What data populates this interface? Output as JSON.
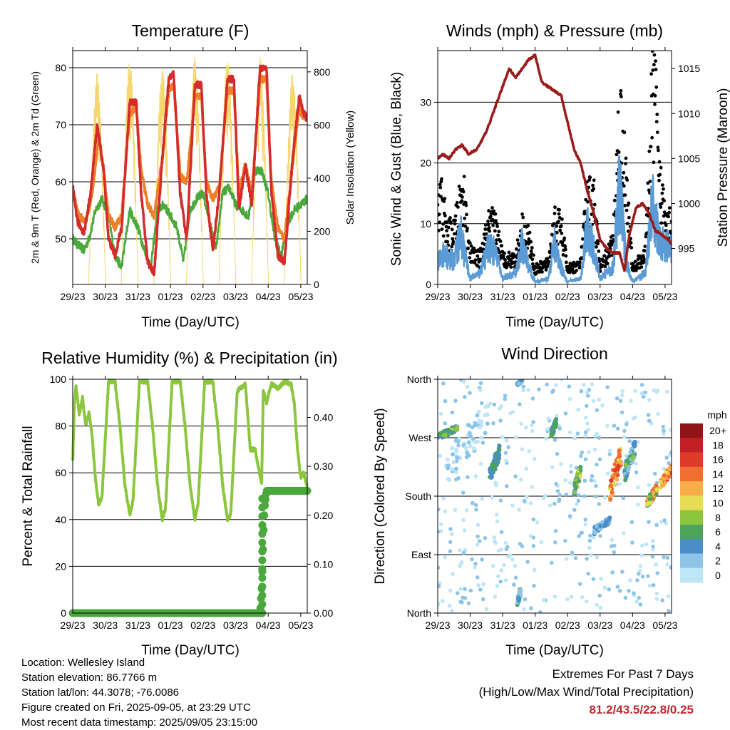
{
  "panels": {
    "temperature": {
      "title": "Temperature (F)",
      "ylabel_left": "2m & 9m T (Red, Orange) & 2m Td (Green)",
      "ylabel_right": "Solar Insolation (Yellow)",
      "xlabel": "Time (Day/UTC)"
    },
    "winds": {
      "title": "Winds (mph) & Pressure (mb)",
      "ylabel_left": "Sonic Wind & Gust (Blue, Black)",
      "ylabel_right": "Station Pressure (Maroon)",
      "xlabel": "Time (Day/UTC)"
    },
    "humidity": {
      "title": "Relative Humidity (%) & Precipitation (in)",
      "ylabel_left": "Percent & Total Rainfall",
      "xlabel": "Time (Day/UTC)"
    },
    "direction": {
      "title": "Wind Direction",
      "ylabel_left": "Direction (Colored By Speed)",
      "xlabel": "Time (Day/UTC)",
      "colorbar_title": "mph"
    }
  },
  "info": {
    "location": "Location: Wellesley Island",
    "elevation": "Station elevation: 86.7766 m",
    "latlon": "Station lat/lon: 44.3078; -76.0086",
    "created": "Figure created on Fri, 2025-09-05, at 23:29 UTC",
    "recent": "Most recent data timestamp: 2025/09/05 23:15:00"
  },
  "extremes": {
    "line1": "Extremes For Past 7 Days",
    "line2": "(High/Low/Max Wind/Total Precipitation)",
    "values": "81.2/43.5/22.8/0.25"
  },
  "colors": {
    "temp_2m": "#d42b2b",
    "temp_9m": "#f07f2a",
    "dewpoint": "#4aa83c",
    "solar": "#f5d76e",
    "wind": "#5b9bd5",
    "gust": "#000000",
    "pressure": "#9b1b1b",
    "rh": "#8cc63f",
    "precip": "#4aa83c",
    "speed_scale": [
      "#bfe6f7",
      "#8ec4e8",
      "#4a8ec9",
      "#4da35a",
      "#8cc63f",
      "#e6dd55",
      "#f9ad4a",
      "#f06f30",
      "#e03a2a",
      "#c21f26",
      "#8e1418"
    ]
  },
  "chart_data": [
    {
      "type": "line",
      "title": "Temperature (F)",
      "xlabel": "Time (Day/UTC)",
      "ylabel": "2m & 9m T (Red, Orange) & 2m Td (Green)",
      "y2label": "Solar Insolation (Yellow)",
      "x_ticks": [
        "29/23",
        "30/23",
        "31/23",
        "01/23",
        "02/23",
        "03/23",
        "04/23",
        "05/23"
      ],
      "xlim": [
        0,
        7.2
      ],
      "ylim": [
        42,
        83
      ],
      "y_ticks": [
        50,
        60,
        70,
        80
      ],
      "y2lim": [
        0,
        880
      ],
      "y2_ticks": [
        0,
        200,
        400,
        600,
        800
      ],
      "grid": "horizontal",
      "series": [
        {
          "name": "2m T",
          "x": [
            0,
            0.15,
            0.35,
            0.55,
            0.75,
            0.95,
            1.1,
            1.3,
            1.5,
            1.75,
            1.95,
            2.1,
            2.3,
            2.5,
            2.75,
            2.95,
            3.1,
            3.3,
            3.5,
            3.75,
            3.95,
            4.1,
            4.3,
            4.5,
            4.75,
            4.95,
            5.1,
            5.3,
            5.5,
            5.75,
            5.95,
            6.1,
            6.3,
            6.5,
            6.75,
            6.95,
            7.1,
            7.2
          ],
          "y": [
            59,
            53,
            51,
            58,
            70,
            62,
            50,
            47,
            52,
            74,
            74,
            58,
            46,
            44,
            64,
            78,
            79,
            58,
            50,
            77,
            77,
            58,
            48,
            58,
            78,
            78,
            55,
            63,
            56,
            80,
            80,
            58,
            47,
            46,
            64,
            75,
            72,
            71
          ]
        },
        {
          "name": "9m T",
          "x": [
            0,
            0.2,
            0.4,
            0.6,
            0.8,
            0.95,
            1.1,
            1.3,
            1.5,
            1.75,
            1.95,
            2.1,
            2.3,
            2.5,
            2.75,
            2.95,
            3.1,
            3.3,
            3.5,
            3.75,
            3.95,
            4.1,
            4.3,
            4.5,
            4.75,
            4.95,
            5.1,
            5.3,
            5.5,
            5.75,
            5.95,
            6.1,
            6.3,
            6.5,
            6.75,
            6.95,
            7.1,
            7.2
          ],
          "y": [
            58,
            54,
            53,
            58,
            68,
            62,
            54,
            52,
            54,
            72,
            73,
            62,
            56,
            54,
            64,
            76,
            77,
            61,
            60,
            75,
            75,
            60,
            57,
            59,
            76,
            76,
            58,
            63,
            58,
            78,
            78,
            60,
            52,
            50,
            63,
            73,
            71,
            71
          ]
        },
        {
          "name": "2m Td",
          "x": [
            0,
            0.15,
            0.35,
            0.5,
            0.7,
            0.9,
            1.1,
            1.3,
            1.5,
            1.75,
            2.0,
            2.2,
            2.4,
            2.6,
            2.8,
            3.0,
            3.2,
            3.4,
            3.6,
            3.8,
            4.0,
            4.2,
            4.4,
            4.6,
            4.8,
            5.0,
            5.2,
            5.4,
            5.6,
            5.8,
            6.0,
            6.2,
            6.4,
            6.6,
            6.8,
            7.0,
            7.2
          ],
          "y": [
            50,
            49,
            48,
            50,
            55,
            57,
            54,
            47,
            45,
            55,
            52,
            48,
            45,
            55,
            56,
            54,
            52,
            46,
            55,
            57,
            58,
            53,
            48,
            58,
            59,
            56,
            55,
            54,
            62,
            62,
            58,
            50,
            47,
            53,
            55,
            56,
            57
          ]
        },
        {
          "name": "Solar Insolation",
          "axis": "y2",
          "peak_days": [
            0.75,
            1.75,
            2.75,
            3.75,
            4.75,
            5.75,
            6.75
          ],
          "peak_values": [
            800,
            850,
            820,
            860,
            860,
            860,
            800
          ]
        }
      ]
    },
    {
      "type": "line",
      "title": "Winds (mph) & Pressure (mb)",
      "xlabel": "Time (Day/UTC)",
      "ylabel": "Sonic Wind & Gust (Blue, Black)",
      "y2label": "Station Pressure (Maroon)",
      "x_ticks": [
        "29/23",
        "30/23",
        "31/23",
        "01/23",
        "02/23",
        "03/23",
        "04/23",
        "05/23"
      ],
      "xlim": [
        0,
        7.2
      ],
      "ylim": [
        0,
        38.5
      ],
      "y_ticks": [
        0,
        10,
        20,
        30
      ],
      "y2lim": [
        991,
        1017
      ],
      "y2_ticks": [
        995,
        1000,
        1005,
        1010,
        1015
      ],
      "grid": "horizontal",
      "series": [
        {
          "name": "Wind",
          "x": [
            0,
            0.2,
            0.5,
            0.7,
            0.8,
            1.0,
            1.3,
            1.6,
            1.8,
            2.0,
            2.4,
            2.6,
            2.8,
            3.0,
            3.4,
            3.6,
            3.8,
            4.0,
            4.4,
            4.6,
            4.8,
            5.0,
            5.4,
            5.6,
            5.8,
            6.0,
            6.4,
            6.6,
            6.8,
            7.0,
            7.2
          ],
          "y": [
            4,
            5,
            4,
            9,
            6,
            1,
            2,
            7,
            5,
            1,
            2,
            7,
            3,
            0.5,
            1,
            7,
            3,
            0.5,
            1,
            10,
            6,
            1,
            3,
            17,
            4,
            0.5,
            2,
            14,
            8,
            7,
            6
          ]
        },
        {
          "name": "Gust",
          "x": [
            0,
            0.1,
            0.3,
            0.5,
            0.7,
            0.8,
            1.0,
            1.3,
            1.6,
            1.8,
            2.0,
            2.4,
            2.6,
            2.8,
            3.0,
            3.4,
            3.6,
            3.8,
            4.0,
            4.4,
            4.6,
            4.8,
            5.0,
            5.4,
            5.6,
            5.8,
            6.0,
            6.4,
            6.6,
            6.7,
            6.8,
            7.0,
            7.2
          ],
          "y": [
            13,
            17,
            10,
            10,
            16,
            18,
            6,
            5,
            12,
            11,
            5,
            5,
            11,
            9,
            3,
            4,
            12,
            11,
            3,
            4,
            16,
            17,
            3,
            8,
            33,
            20,
            3,
            6,
            35,
            38,
            20,
            15,
            12
          ]
        },
        {
          "name": "Station Pressure",
          "axis": "y2",
          "x": [
            0,
            0.15,
            0.35,
            0.55,
            0.75,
            0.95,
            1.2,
            1.5,
            1.8,
            2.0,
            2.2,
            2.4,
            2.6,
            2.8,
            3.0,
            3.2,
            3.4,
            3.6,
            3.8,
            4.0,
            4.2,
            4.4,
            4.6,
            4.8,
            5.0,
            5.2,
            5.4,
            5.6,
            5.75,
            5.9,
            6.1,
            6.3,
            6.5,
            6.7,
            6.9,
            7.1,
            7.2
          ],
          "y": [
            1005,
            1005.5,
            1005,
            1006,
            1006.5,
            1005.5,
            1006,
            1008,
            1011,
            1013,
            1015,
            1014,
            1015,
            1016,
            1016.5,
            1013.5,
            1013,
            1012.5,
            1012,
            1009,
            1006,
            1004.5,
            1001.5,
            999,
            996,
            995,
            994.5,
            994.5,
            992.5,
            996.5,
            999.5,
            1000,
            999,
            997,
            996.5,
            996,
            995.5
          ]
        }
      ]
    },
    {
      "type": "line",
      "title": "Relative Humidity (%) & Precipitation (in)",
      "xlabel": "Time (Day/UTC)",
      "ylabel": "Percent & Total Rainfall",
      "x_ticks": [
        "29/23",
        "30/23",
        "31/23",
        "01/23",
        "02/23",
        "03/23",
        "04/23",
        "05/23"
      ],
      "xlim": [
        0,
        7.2
      ],
      "ylim": [
        0,
        100
      ],
      "y_ticks": [
        0,
        20,
        40,
        60,
        80,
        100
      ],
      "y2lim": [
        0,
        0.478
      ],
      "y2_ticks": [
        0.0,
        0.1,
        0.2,
        0.3,
        0.4
      ],
      "y2_tick_labels": [
        "0.00",
        "0.10",
        "0.20",
        "0.30",
        "0.40"
      ],
      "grid": "horizontal",
      "series": [
        {
          "name": "RH",
          "x": [
            0,
            0.05,
            0.1,
            0.2,
            0.3,
            0.4,
            0.5,
            0.6,
            0.7,
            0.8,
            0.9,
            1.1,
            1.3,
            1.45,
            1.6,
            1.75,
            1.85,
            2.05,
            2.3,
            2.45,
            2.6,
            2.75,
            2.85,
            3.05,
            3.3,
            3.45,
            3.6,
            3.75,
            3.85,
            4.05,
            4.3,
            4.45,
            4.6,
            4.75,
            4.85,
            5.05,
            5.3,
            5.45,
            5.6,
            5.8,
            5.85,
            5.95,
            6.1,
            6.3,
            6.5,
            6.7,
            6.8,
            6.9,
            7.0,
            7.1,
            7.2
          ],
          "y": [
            65,
            90,
            97,
            85,
            92,
            80,
            86,
            75,
            57,
            46,
            50,
            99,
            99,
            80,
            55,
            42,
            48,
            99,
            99,
            80,
            55,
            40,
            45,
            99,
            99,
            80,
            55,
            40,
            47,
            99,
            99,
            80,
            55,
            40,
            42,
            95,
            98,
            70,
            70,
            55,
            95,
            90,
            98,
            96,
            99,
            98,
            90,
            70,
            58,
            60,
            54
          ]
        },
        {
          "name": "Precipitation",
          "axis": "y2",
          "x": [
            0,
            5.75,
            5.8,
            5.82,
            5.84,
            5.86,
            5.88,
            5.9,
            5.95,
            7.2
          ],
          "y": [
            0,
            0,
            0.05,
            0.085,
            0.13,
            0.17,
            0.2,
            0.22,
            0.25,
            0.25
          ]
        }
      ]
    },
    {
      "type": "scatter",
      "title": "Wind Direction",
      "xlabel": "Time (Day/UTC)",
      "ylabel": "Direction (Colored By Speed)",
      "x_ticks": [
        "29/23",
        "30/23",
        "31/23",
        "01/23",
        "02/23",
        "03/23",
        "04/23",
        "05/23"
      ],
      "xlim": [
        0,
        7.2
      ],
      "y_categories": [
        "North",
        "East",
        "South",
        "West",
        "North"
      ],
      "ylim_deg": [
        0,
        360
      ],
      "colorbar": {
        "title": "mph",
        "labels": [
          "0",
          "2",
          "4",
          "6",
          "8",
          "10",
          "12",
          "14",
          "16",
          "18",
          "20+"
        ]
      },
      "clusters": [
        {
          "x": [
            0.0,
            0.6
          ],
          "deg": [
            265,
            290
          ],
          "speed": [
            4,
            12
          ]
        },
        {
          "x": [
            0.3,
            1.6
          ],
          "deg": [
            200,
            330
          ],
          "speed": [
            0,
            4
          ]
        },
        {
          "x": [
            1.6,
            1.9
          ],
          "deg": [
            200,
            260
          ],
          "speed": [
            4,
            8
          ]
        },
        {
          "x": [
            2.45,
            2.55
          ],
          "deg": [
            10,
            40
          ],
          "speed": [
            2,
            7
          ]
        },
        {
          "x": [
            2.45,
            2.6
          ],
          "deg": [
            350,
            360
          ],
          "speed": [
            2,
            6
          ]
        },
        {
          "x": [
            3.5,
            3.65
          ],
          "deg": [
            270,
            300
          ],
          "speed": [
            4,
            8
          ]
        },
        {
          "x": [
            4.2,
            4.4
          ],
          "deg": [
            180,
            230
          ],
          "speed": [
            4,
            12
          ]
        },
        {
          "x": [
            4.8,
            5.3
          ],
          "deg": [
            120,
            150
          ],
          "speed": [
            2,
            6
          ]
        },
        {
          "x": [
            5.3,
            5.65
          ],
          "deg": [
            170,
            260
          ],
          "speed": [
            10,
            18
          ]
        },
        {
          "x": [
            5.75,
            6.1
          ],
          "deg": [
            200,
            270
          ],
          "speed": [
            2,
            10
          ]
        },
        {
          "x": [
            6.45,
            6.75
          ],
          "deg": [
            160,
            200
          ],
          "speed": [
            6,
            16
          ]
        },
        {
          "x": [
            6.85,
            7.2
          ],
          "deg": [
            190,
            230
          ],
          "speed": [
            10,
            18
          ]
        }
      ]
    }
  ]
}
